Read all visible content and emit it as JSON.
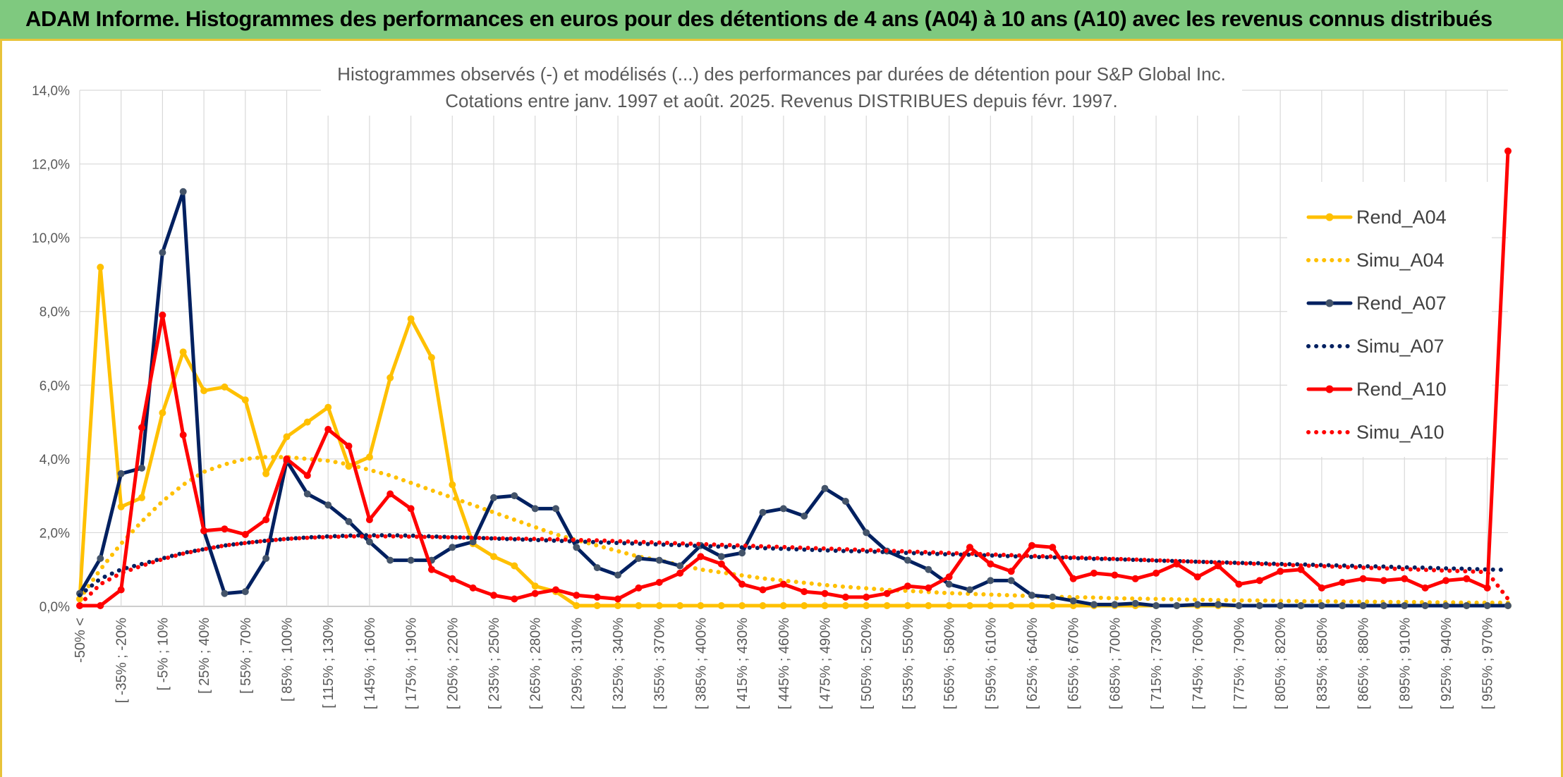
{
  "banner": {
    "title": "ADAM Informe. Histogrammes des performances en euros pour des détentions de 4 ans (A04) à 10 ans (A10) avec les revenus connus distribués"
  },
  "colors": {
    "A04": "#FFC000",
    "A07": "#002060",
    "A10": "#FF0000",
    "marker_A07": "#44546A"
  },
  "chart_data": {
    "type": "line",
    "title": "Histogrammes observés (-) et modélisés (...) des performances par durées de détention pour S&P Global Inc.",
    "subtitle": "Cotations entre janv. 1997 et août. 2025. Revenus DISTRIBUES depuis févr. 1997.",
    "xlabel": "",
    "ylabel": "",
    "ylim": [
      0,
      14
    ],
    "y_ticks": [
      "0,0%",
      "2,0%",
      "4,0%",
      "6,0%",
      "8,0%",
      "10,0%",
      "12,0%",
      "14,0%"
    ],
    "grid": true,
    "legend_position": "right",
    "x_tick_labels": [
      "-50% <",
      "[ -35% ; -20%",
      "[ -5% ; 10%",
      "[ 25% ; 40%",
      "[ 55% ; 70%",
      "[ 85% ; 100%",
      "[ 115% ; 130%",
      "[ 145% ; 160%",
      "[ 175% ; 190%",
      "[ 205% ; 220%",
      "[ 235% ; 250%",
      "[ 265% ; 280%",
      "[ 295% ; 310%",
      "[ 325% ; 340%",
      "[ 355% ; 370%",
      "[ 385% ; 400%",
      "[ 415% ; 430%",
      "[ 445% ; 460%",
      "[ 475% ; 490%",
      "[ 505% ; 520%",
      "[ 535% ; 550%",
      "[ 565% ; 580%",
      "[ 595% ; 610%",
      "[ 625% ; 640%",
      "[ 655% ; 670%",
      "[ 685% ; 700%",
      "[ 715% ; 730%",
      "[ 745% ; 760%",
      "[ 775% ; 790%",
      "[ 805% ; 820%",
      "[ 835% ; 850%",
      "[ 865% ; 880%",
      "[ 895% ; 910%",
      "[ 925% ; 940%",
      "[ 955% ; 970%"
    ],
    "x_tick_every": 2,
    "category_count": 70,
    "series": [
      {
        "name": "Rend_A04",
        "style": "solid",
        "color": "#FFC000",
        "values": [
          0.2,
          9.2,
          2.7,
          2.95,
          5.25,
          6.9,
          5.85,
          5.95,
          5.6,
          3.6,
          4.6,
          5.0,
          5.4,
          3.8,
          4.05,
          6.2,
          7.8,
          6.75,
          3.3,
          1.7,
          1.35,
          1.1,
          0.55,
          0.4,
          0.02,
          0.02,
          0.02,
          0.02,
          0.02,
          0.02,
          0.02,
          0.02,
          0.02,
          0.02,
          0.02,
          0.02,
          0.02,
          0.02,
          0.02,
          0.02,
          0.02,
          0.02,
          0.02,
          0.02,
          0.02,
          0.02,
          0.02,
          0.02,
          0.02,
          0.02,
          0.02,
          0.02,
          0.02,
          0.02,
          0.02,
          0.02,
          0.02,
          0.02,
          0.02,
          0.02,
          0.02,
          0.02,
          0.02,
          0.02,
          0.02,
          0.02,
          0.02,
          0.02,
          0.02,
          0.02
        ]
      },
      {
        "name": "Simu_A04",
        "style": "dotted",
        "color": "#FFC000",
        "values": [
          0.2,
          1.0,
          1.7,
          2.3,
          2.85,
          3.3,
          3.65,
          3.85,
          4.0,
          4.05,
          4.05,
          4.0,
          3.95,
          3.85,
          3.7,
          3.55,
          3.35,
          3.15,
          2.95,
          2.75,
          2.55,
          2.35,
          2.15,
          1.95,
          1.8,
          1.65,
          1.5,
          1.35,
          1.25,
          1.12,
          1.0,
          0.92,
          0.84,
          0.76,
          0.7,
          0.64,
          0.58,
          0.53,
          0.49,
          0.45,
          0.42,
          0.39,
          0.36,
          0.34,
          0.32,
          0.3,
          0.28,
          0.26,
          0.25,
          0.24,
          0.22,
          0.21,
          0.2,
          0.19,
          0.18,
          0.17,
          0.16,
          0.16,
          0.15,
          0.14,
          0.14,
          0.13,
          0.13,
          0.12,
          0.12,
          0.11,
          0.11,
          0.1,
          0.1,
          0.1
        ]
      },
      {
        "name": "Rend_A07",
        "style": "solid",
        "color": "#002060",
        "values": [
          0.35,
          1.3,
          3.6,
          3.75,
          9.6,
          11.25,
          2.05,
          0.35,
          0.4,
          1.3,
          3.95,
          3.05,
          2.75,
          2.3,
          1.75,
          1.25,
          1.25,
          1.25,
          1.6,
          1.75,
          2.95,
          3.0,
          2.65,
          2.65,
          1.6,
          1.05,
          0.85,
          1.3,
          1.25,
          1.1,
          1.65,
          1.35,
          1.45,
          2.55,
          2.65,
          2.45,
          3.2,
          2.85,
          2.0,
          1.5,
          1.25,
          1.0,
          0.6,
          0.45,
          0.7,
          0.7,
          0.3,
          0.25,
          0.15,
          0.05,
          0.05,
          0.08,
          0.02,
          0.02,
          0.05,
          0.05,
          0.02,
          0.02,
          0.02,
          0.02,
          0.02,
          0.02,
          0.02,
          0.02,
          0.02,
          0.02,
          0.02,
          0.02,
          0.02,
          0.02
        ]
      },
      {
        "name": "Simu_A07",
        "style": "dotted",
        "color": "#002060",
        "values": [
          0.3,
          0.75,
          1.0,
          1.15,
          1.3,
          1.45,
          1.55,
          1.65,
          1.72,
          1.78,
          1.83,
          1.87,
          1.9,
          1.92,
          1.93,
          1.93,
          1.92,
          1.9,
          1.88,
          1.86,
          1.84,
          1.82,
          1.8,
          1.78,
          1.76,
          1.74,
          1.72,
          1.7,
          1.68,
          1.66,
          1.64,
          1.62,
          1.6,
          1.58,
          1.56,
          1.54,
          1.52,
          1.5,
          1.49,
          1.47,
          1.45,
          1.43,
          1.41,
          1.4,
          1.38,
          1.36,
          1.34,
          1.33,
          1.31,
          1.29,
          1.28,
          1.26,
          1.24,
          1.23,
          1.21,
          1.2,
          1.18,
          1.17,
          1.15,
          1.14,
          1.12,
          1.11,
          1.09,
          1.08,
          1.06,
          1.05,
          1.03,
          1.02,
          1.0,
          0.99
        ]
      },
      {
        "name": "Rend_A10",
        "style": "solid",
        "color": "#FF0000",
        "values": [
          0.02,
          0.02,
          0.45,
          4.85,
          7.9,
          4.65,
          2.05,
          2.1,
          1.95,
          2.35,
          4.0,
          3.55,
          4.8,
          4.35,
          2.35,
          3.05,
          2.65,
          1.0,
          0.75,
          0.5,
          0.3,
          0.2,
          0.35,
          0.45,
          0.3,
          0.25,
          0.2,
          0.5,
          0.65,
          0.9,
          1.35,
          1.15,
          0.6,
          0.45,
          0.6,
          0.4,
          0.35,
          0.25,
          0.25,
          0.35,
          0.55,
          0.5,
          0.8,
          1.6,
          1.15,
          0.95,
          1.65,
          1.6,
          0.75,
          0.9,
          0.85,
          0.75,
          0.9,
          1.15,
          0.8,
          1.1,
          0.6,
          0.7,
          0.95,
          1.0,
          0.5,
          0.65,
          0.75,
          0.7,
          0.75,
          0.5,
          0.7,
          0.75,
          0.5,
          12.35
        ]
      },
      {
        "name": "Simu_A10",
        "style": "dotted",
        "color": "#FF0000",
        "values": [
          0.05,
          0.6,
          0.9,
          1.1,
          1.28,
          1.43,
          1.55,
          1.65,
          1.72,
          1.78,
          1.83,
          1.86,
          1.88,
          1.9,
          1.9,
          1.9,
          1.89,
          1.88,
          1.87,
          1.86,
          1.85,
          1.84,
          1.83,
          1.82,
          1.8,
          1.79,
          1.77,
          1.75,
          1.73,
          1.71,
          1.69,
          1.67,
          1.65,
          1.63,
          1.61,
          1.59,
          1.57,
          1.55,
          1.53,
          1.51,
          1.49,
          1.47,
          1.45,
          1.43,
          1.41,
          1.39,
          1.37,
          1.35,
          1.33,
          1.31,
          1.29,
          1.27,
          1.25,
          1.23,
          1.21,
          1.19,
          1.17,
          1.15,
          1.13,
          1.11,
          1.09,
          1.07,
          1.05,
          1.03,
          1.01,
          0.99,
          0.97,
          0.95,
          0.93,
          0.2
        ]
      }
    ]
  }
}
